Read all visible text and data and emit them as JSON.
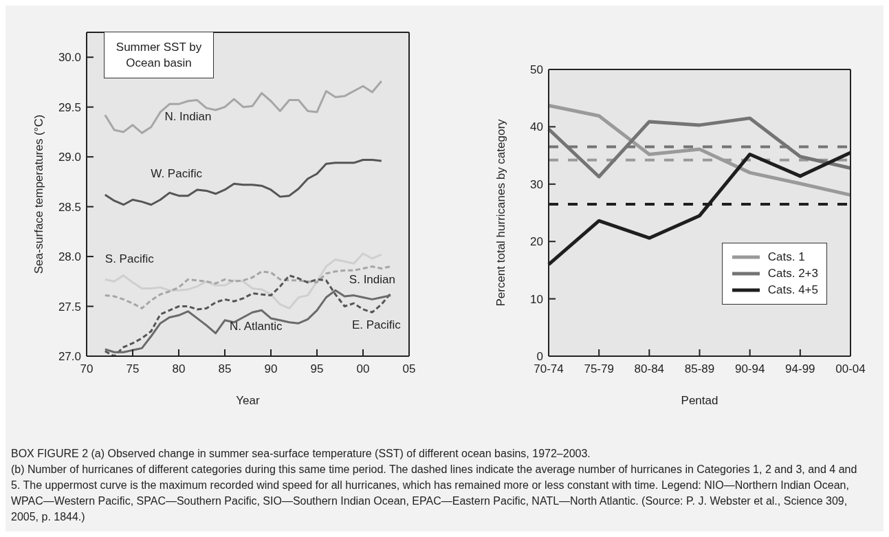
{
  "chart_data": [
    {
      "type": "line",
      "title": "Summer SST by Ocean basin",
      "xlabel": "Year",
      "ylabel": "Sea-surface temperatures (°C)",
      "x": [
        1972,
        1973,
        1974,
        1975,
        1976,
        1977,
        1978,
        1979,
        1980,
        1981,
        1982,
        1983,
        1984,
        1985,
        1986,
        1987,
        1988,
        1989,
        1990,
        1991,
        1992,
        1993,
        1994,
        1995,
        1996,
        1997,
        1998,
        1999,
        2000,
        2001,
        2002,
        2003
      ],
      "xlim": [
        1970,
        2005
      ],
      "xticks": [
        {
          "value": 1970,
          "label": "70"
        },
        {
          "value": 1975,
          "label": "75"
        },
        {
          "value": 1980,
          "label": "80"
        },
        {
          "value": 1985,
          "label": "85"
        },
        {
          "value": 1990,
          "label": "90"
        },
        {
          "value": 1995,
          "label": "95"
        },
        {
          "value": 2000,
          "label": "00"
        },
        {
          "value": 2005,
          "label": "05"
        }
      ],
      "ylim": [
        27,
        30.25
      ],
      "yticks": [
        {
          "value": 27,
          "label": "27.0"
        },
        27.5,
        {
          "value": 28,
          "label": "28.0"
        },
        28.5,
        {
          "value": 29,
          "label": "29.0"
        },
        29.5,
        {
          "value": 30,
          "label": "30.0"
        }
      ],
      "legend": false,
      "grid": false,
      "series": [
        {
          "name": "N. Indian",
          "color": "#a6a6a6",
          "values": [
            29.42,
            29.27,
            29.25,
            29.32,
            29.24,
            29.3,
            29.45,
            29.53,
            29.53,
            29.56,
            29.57,
            29.49,
            29.47,
            29.5,
            29.58,
            29.5,
            29.51,
            29.64,
            29.56,
            29.46,
            29.57,
            29.57,
            29.46,
            29.45,
            29.66,
            29.6,
            29.61,
            29.66,
            29.71,
            29.65,
            29.76,
            null
          ]
        },
        {
          "name": "W. Pacific",
          "color": "#555555",
          "values": [
            28.62,
            28.56,
            28.52,
            28.57,
            28.55,
            28.52,
            28.57,
            28.64,
            28.61,
            28.61,
            28.67,
            28.66,
            28.63,
            28.67,
            28.73,
            28.72,
            28.72,
            28.71,
            28.67,
            28.6,
            28.61,
            28.68,
            28.78,
            28.83,
            28.93,
            28.94,
            28.94,
            28.94,
            28.97,
            28.97,
            28.96,
            null
          ]
        },
        {
          "name": "S. Pacific",
          "color": "#cfcfcf",
          "values": [
            27.77,
            27.75,
            27.81,
            27.74,
            27.68,
            27.68,
            27.69,
            27.66,
            27.66,
            27.67,
            27.7,
            27.75,
            27.71,
            27.71,
            27.76,
            27.75,
            27.68,
            27.67,
            27.62,
            27.52,
            27.48,
            27.59,
            27.61,
            27.75,
            27.9,
            27.97,
            27.95,
            27.93,
            28.03,
            27.98,
            28.02,
            null
          ]
        },
        {
          "name": "S. Indian",
          "color": "#a6a6a6",
          "line_style": "dashed",
          "values": [
            27.61,
            27.6,
            27.57,
            27.53,
            27.48,
            27.56,
            27.62,
            27.65,
            27.69,
            27.77,
            27.76,
            27.75,
            27.73,
            27.77,
            27.75,
            27.76,
            27.79,
            27.85,
            27.84,
            27.77,
            27.76,
            27.76,
            27.75,
            27.74,
            27.83,
            27.85,
            27.86,
            27.86,
            27.88,
            27.9,
            27.88,
            27.9
          ]
        },
        {
          "name": "E. Pacific",
          "color": "#555555",
          "line_style": "dashed",
          "values": [
            27.05,
            27.0,
            27.09,
            27.13,
            27.18,
            27.25,
            27.42,
            27.46,
            27.5,
            27.5,
            27.47,
            27.48,
            27.54,
            27.57,
            27.55,
            27.58,
            27.63,
            27.62,
            27.61,
            27.7,
            27.81,
            27.78,
            27.74,
            27.77,
            27.76,
            27.62,
            27.5,
            27.53,
            27.47,
            27.44,
            27.52,
            27.63
          ]
        },
        {
          "name": "N. Atlantic",
          "color": "#6a6a6a",
          "values": [
            27.07,
            27.04,
            27.04,
            27.06,
            27.08,
            27.2,
            27.33,
            27.39,
            27.41,
            27.45,
            27.38,
            27.31,
            27.23,
            27.36,
            27.34,
            27.39,
            27.44,
            27.46,
            27.38,
            27.36,
            27.34,
            27.33,
            27.37,
            27.46,
            27.59,
            27.66,
            27.6,
            27.61,
            27.59,
            27.57,
            27.59,
            27.61
          ]
        }
      ],
      "annotations": [
        "BOX FIGURE 2 (a) Observed change in summer sea-surface temperature (SST) of different ocean basins, 1972–2003.",
        "(b) Number of hurricanes of different categories during this same time period. The dashed lines indicate the average number of hurricanes in Categories 1, 2 and 3, and 4 and 5. The uppermost curve is the maximum recorded wind speed for all hurricanes, which has remained more or less constant with time. Legend: NIO—Northern Indian Ocean, WPAC—Western Pacific, SPAC—Southern Pacific, SIO—Southern Indian Ocean, EPAC—Eastern Pacific, NATL—North Atlantic. (Source: P. J. Webster et al., Science 309, 2005, p. 1844.)"
      ]
    },
    {
      "type": "line",
      "xlabel": "Pentad",
      "ylabel": "Percent total hurricanes by category",
      "categories": [
        "70-74",
        "75-79",
        "80-84",
        "85-89",
        "90-94",
        "94-99",
        "00-04"
      ],
      "ylim": [
        0,
        50
      ],
      "yticks": [
        0,
        10,
        20,
        30,
        40,
        50
      ],
      "legend": "bottom right",
      "grid": false,
      "series": [
        {
          "name": "Cats. 1",
          "color": "#9a9a9a",
          "values": [
            43.7,
            41.9,
            35.2,
            36.1,
            32.0,
            30.1,
            28.1
          ]
        },
        {
          "name": "Cats. 2+3",
          "color": "#747474",
          "values": [
            39.6,
            31.3,
            40.9,
            40.3,
            41.5,
            34.8,
            32.8
          ]
        },
        {
          "name": "Cats. 4+5",
          "color": "#1e1e1e",
          "values": [
            16.0,
            23.6,
            20.6,
            24.5,
            35.2,
            31.4,
            35.5
          ]
        }
      ],
      "ref_lines": [
        {
          "axis": "y",
          "value": 36.5,
          "color": "#747474",
          "line_style": "dashed"
        },
        {
          "axis": "y",
          "value": 34.2,
          "color": "#9a9a9a",
          "line_style": "dashed"
        },
        {
          "axis": "y",
          "value": 26.5,
          "color": "#1e1e1e",
          "line_style": "dashed"
        }
      ]
    }
  ]
}
